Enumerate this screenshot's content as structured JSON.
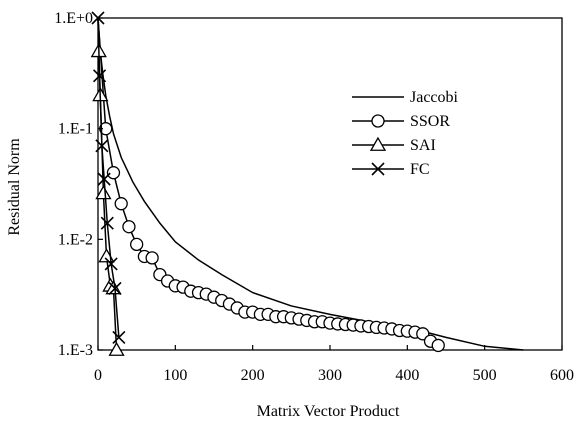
{
  "chart_data": {
    "type": "line",
    "title": "",
    "xlabel": "Matrix Vector Product",
    "ylabel": "Residual Norm",
    "xlim": [
      0,
      600
    ],
    "ylim": [
      0.001,
      1
    ],
    "yscale": "log",
    "grid": false,
    "legend_position": "top-right",
    "x_ticks": [
      0,
      100,
      200,
      300,
      400,
      500,
      600
    ],
    "x_tick_labels": [
      "0",
      "100",
      "200",
      "300",
      "400",
      "500",
      "600"
    ],
    "y_ticks": [
      1,
      0.1,
      0.01,
      0.001
    ],
    "y_tick_labels": [
      "1.E+0",
      "1.E-1",
      "1.E-2",
      "1.E-3"
    ],
    "series": [
      {
        "name": "Jaccobi",
        "marker": "none",
        "x": [
          0,
          3,
          6,
          10,
          15,
          20,
          30,
          45,
          60,
          80,
          100,
          130,
          160,
          200,
          250,
          300,
          350,
          400,
          450,
          500,
          550
        ],
        "y": [
          1,
          0.5,
          0.32,
          0.2,
          0.13,
          0.09,
          0.055,
          0.033,
          0.022,
          0.014,
          0.0095,
          0.0065,
          0.0048,
          0.0033,
          0.0025,
          0.0021,
          0.0018,
          0.0016,
          0.0013,
          0.00108,
          0.001
        ]
      },
      {
        "name": "SSOR",
        "marker": "circle",
        "x": [
          0,
          10,
          20,
          30,
          40,
          50,
          60,
          70,
          80,
          90,
          100,
          110,
          120,
          130,
          140,
          150,
          160,
          170,
          180,
          190,
          200,
          210,
          220,
          230,
          240,
          250,
          260,
          270,
          280,
          290,
          300,
          310,
          320,
          330,
          340,
          350,
          360,
          370,
          380,
          390,
          400,
          410,
          420,
          430,
          440
        ],
        "y": [
          1,
          0.1,
          0.04,
          0.021,
          0.013,
          0.009,
          0.007,
          0.0068,
          0.0048,
          0.0042,
          0.0038,
          0.0037,
          0.0034,
          0.0033,
          0.0032,
          0.003,
          0.0028,
          0.0026,
          0.0024,
          0.0022,
          0.0022,
          0.0021,
          0.0021,
          0.002,
          0.002,
          0.00195,
          0.0019,
          0.00185,
          0.0018,
          0.0018,
          0.00175,
          0.00172,
          0.0017,
          0.00168,
          0.00165,
          0.00163,
          0.0016,
          0.00158,
          0.00155,
          0.0015,
          0.00148,
          0.00145,
          0.0014,
          0.0012,
          0.0011
        ]
      },
      {
        "name": "SAI",
        "marker": "triangle",
        "x": [
          0,
          1,
          3,
          7,
          11,
          16,
          20,
          24
        ],
        "y": [
          1,
          0.5,
          0.2,
          0.026,
          0.007,
          0.0038,
          0.0036,
          0.001
        ]
      },
      {
        "name": "FC",
        "marker": "x",
        "x": [
          0,
          2,
          5,
          8,
          12,
          17,
          22,
          27
        ],
        "y": [
          1,
          0.3,
          0.07,
          0.035,
          0.014,
          0.006,
          0.0036,
          0.0013
        ]
      }
    ]
  }
}
